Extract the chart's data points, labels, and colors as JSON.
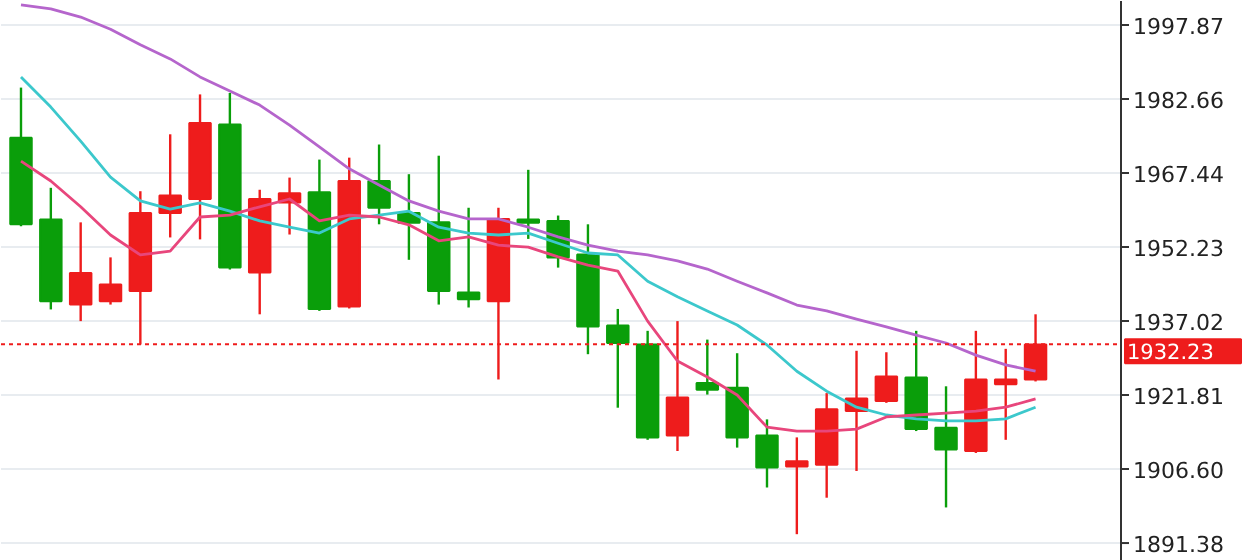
{
  "chart_data": {
    "type": "candlestick",
    "categories": [
      null,
      null,
      null,
      null,
      null,
      null,
      null,
      null,
      null,
      null,
      null,
      null,
      null,
      null,
      null,
      null,
      null,
      null,
      null,
      null,
      null,
      null,
      null,
      null,
      null,
      null,
      null,
      null,
      null,
      null,
      null,
      null,
      null,
      null,
      null
    ],
    "ohlc": [
      [
        1974.7,
        1985.0,
        1956.5,
        1956.9
      ],
      [
        1957.9,
        1964.4,
        1939.4,
        1941.1
      ],
      [
        1940.4,
        1957.3,
        1937.0,
        1946.9
      ],
      [
        1941.1,
        1950.1,
        1940.4,
        1944.5
      ],
      [
        1943.2,
        1963.7,
        1932.2,
        1959.2
      ],
      [
        1959.2,
        1975.4,
        1954.2,
        1962.8
      ],
      [
        1962.1,
        1983.6,
        1953.8,
        1977.7
      ],
      [
        1977.4,
        1983.9,
        1947.6,
        1948.0
      ],
      [
        1947.0,
        1964.0,
        1938.4,
        1962.1
      ],
      [
        1961.4,
        1966.5,
        1954.8,
        1963.3
      ],
      [
        1963.5,
        1970.2,
        1939.1,
        1939.5
      ],
      [
        1940.0,
        1970.6,
        1939.6,
        1965.8
      ],
      [
        1965.8,
        1973.3,
        1956.9,
        1960.3
      ],
      [
        1959.2,
        1967.2,
        1949.6,
        1957.2
      ],
      [
        1957.3,
        1971.0,
        1940.4,
        1943.2
      ],
      [
        1942.9,
        1960.3,
        1939.8,
        1941.5
      ],
      [
        1941.1,
        1960.3,
        1925.0,
        1958.0
      ],
      [
        1957.9,
        1968.1,
        1953.9,
        1957.2
      ],
      [
        1957.6,
        1958.7,
        1948.0,
        1950.1
      ],
      [
        1950.7,
        1956.9,
        1930.2,
        1935.9
      ],
      [
        1936.1,
        1939.5,
        1919.2,
        1932.5
      ],
      [
        1932.2,
        1935.0,
        1912.6,
        1913.1
      ],
      [
        1913.5,
        1937.0,
        1910.3,
        1921.3
      ],
      [
        1924.3,
        1933.2,
        1921.9,
        1922.9
      ],
      [
        1923.3,
        1930.4,
        1911.0,
        1913.1
      ],
      [
        1913.5,
        1916.8,
        1902.8,
        1906.9
      ],
      [
        1907.1,
        1913.1,
        1893.2,
        1908.2
      ],
      [
        1907.5,
        1922.2,
        1900.7,
        1918.9
      ],
      [
        1918.5,
        1930.9,
        1906.2,
        1921.1
      ],
      [
        1920.6,
        1930.6,
        1920.2,
        1925.6
      ],
      [
        1925.4,
        1935.0,
        1914.4,
        1914.8
      ],
      [
        1915.1,
        1923.6,
        1898.7,
        1910.6
      ],
      [
        1910.3,
        1935.0,
        1909.9,
        1925.0
      ],
      [
        1924.0,
        1931.3,
        1912.6,
        1925.0
      ],
      [
        1925.0,
        1938.4,
        1924.6,
        1932.2
      ]
    ],
    "colors": [
      "#0a9e0a",
      "#0a9e0a",
      "#ee1c1c",
      "#ee1c1c",
      "#ee1c1c",
      "#ee1c1c",
      "#ee1c1c",
      "#0a9e0a",
      "#ee1c1c",
      "#ee1c1c",
      "#0a9e0a",
      "#ee1c1c",
      "#0a9e0a",
      "#0a9e0a",
      "#0a9e0a",
      "#0a9e0a",
      "#ee1c1c",
      "#0a9e0a",
      "#0a9e0a",
      "#0a9e0a",
      "#0a9e0a",
      "#0a9e0a",
      "#ee1c1c",
      "#0a9e0a",
      "#0a9e0a",
      "#0a9e0a",
      "#ee1c1c",
      "#ee1c1c",
      "#ee1c1c",
      "#ee1c1c",
      "#0a9e0a",
      "#0a9e0a",
      "#ee1c1c",
      "#ee1c1c",
      "#ee1c1c"
    ],
    "series": [
      {
        "type": "line",
        "color": "#b565cc",
        "values": [
          2002.0,
          2001.2,
          1999.5,
          1997.0,
          1993.8,
          1990.9,
          1987.2,
          1984.3,
          1981.4,
          1977.3,
          1972.8,
          1968.3,
          1965.0,
          1961.7,
          1959.6,
          1958.0,
          1958.0,
          1956.3,
          1954.3,
          1952.6,
          1951.4,
          1950.6,
          1949.4,
          1947.7,
          1945.2,
          1942.8,
          1940.3,
          1939.1,
          1937.4,
          1935.8,
          1934.1,
          1932.5,
          1930.0,
          1928.0,
          1926.7
        ]
      },
      {
        "type": "line",
        "color": "#3cc8cc",
        "values": [
          1987.2,
          1981.0,
          1974.0,
          1966.6,
          1961.7,
          1960.0,
          1961.3,
          1959.6,
          1957.6,
          1956.3,
          1955.1,
          1958.0,
          1958.8,
          1959.6,
          1956.3,
          1955.1,
          1954.7,
          1955.1,
          1953.0,
          1951.0,
          1950.6,
          1945.2,
          1942.0,
          1939.1,
          1936.2,
          1932.1,
          1926.7,
          1922.6,
          1919.3,
          1917.7,
          1916.9,
          1916.5,
          1916.5,
          1916.9,
          1919.3
        ]
      },
      {
        "type": "line",
        "color": "#e8467c",
        "values": [
          1969.9,
          1965.8,
          1960.5,
          1954.7,
          1950.6,
          1951.4,
          1958.4,
          1958.8,
          1960.5,
          1962.1,
          1957.6,
          1958.8,
          1958.4,
          1956.8,
          1953.5,
          1954.3,
          1952.6,
          1952.2,
          1950.2,
          1948.5,
          1947.3,
          1937.0,
          1928.8,
          1925.5,
          1921.8,
          1915.2,
          1914.4,
          1914.4,
          1914.8,
          1917.3,
          1917.7,
          1918.1,
          1918.5,
          1919.3,
          1921.0
        ]
      }
    ],
    "ylim": [
      1887.69,
      2002.8
    ],
    "yticks": [
      {
        "value": 1891.38,
        "label": "1891.38"
      },
      {
        "value": 1906.6,
        "label": "1906.60"
      },
      1921.81,
      1937.02,
      1952.23,
      1967.44,
      1982.66,
      1997.87
    ],
    "ref_lines": [
      {
        "axis": "y",
        "value": 1932.23,
        "label": "1932.23",
        "color": "#ee1c1c",
        "line_style": "dotted"
      }
    ],
    "grid": "y",
    "tick_labels": "y"
  }
}
